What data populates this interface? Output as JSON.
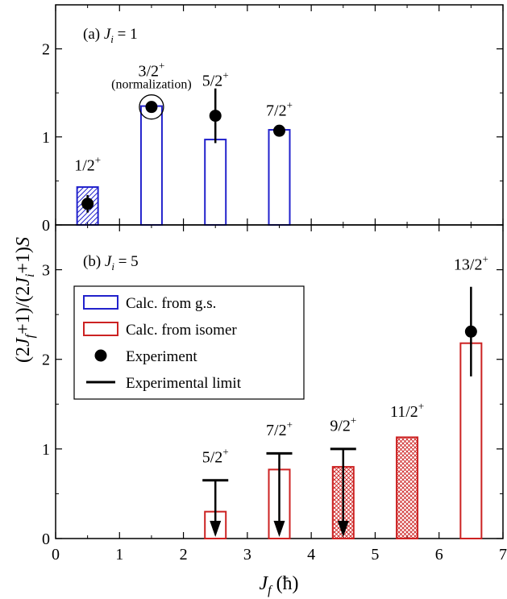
{
  "colors": {
    "calc_gs": "#2222cc",
    "calc_isomer": "#cc2222",
    "experiment": "#000000"
  },
  "chart_data": [
    {
      "panel": "a",
      "type": "bar",
      "panel_label": {
        "prefix": "(a) ",
        "sym": "J",
        "sub": "i",
        "rest": " = 1"
      },
      "xlim": [
        0,
        7
      ],
      "ylim": [
        0,
        2.5
      ],
      "yticks": [
        0,
        1,
        2
      ],
      "bars": [
        {
          "x": 0.5,
          "value": 0.43,
          "series": "gs",
          "hatch": "diag"
        },
        {
          "x": 1.5,
          "value": 1.35,
          "series": "gs",
          "hatch": "none"
        },
        {
          "x": 2.5,
          "value": 0.97,
          "series": "gs",
          "hatch": "none"
        },
        {
          "x": 3.5,
          "value": 1.08,
          "series": "gs",
          "hatch": "none"
        }
      ],
      "points": [
        {
          "x": 0.5,
          "y": 0.24,
          "err": 0.1
        },
        {
          "x": 1.5,
          "y": 1.34,
          "err": 0,
          "circled": true
        },
        {
          "x": 2.5,
          "y": 1.24,
          "err": 0.31
        },
        {
          "x": 3.5,
          "y": 1.07,
          "err": 0.04
        }
      ],
      "level_labels": [
        {
          "x": 0.5,
          "num": "1/2",
          "sup": "+",
          "y": 0.62
        },
        {
          "x": 1.5,
          "num": "3/2",
          "sup": "+",
          "y": 1.69
        },
        {
          "x": 2.5,
          "num": "5/2",
          "sup": "+",
          "y": 1.58
        },
        {
          "x": 3.5,
          "num": "7/2",
          "sup": "+",
          "y": 1.24
        }
      ],
      "annotations": [
        {
          "text": "(normalization)",
          "x": 1.5,
          "y": 1.55
        }
      ]
    },
    {
      "panel": "b",
      "type": "bar",
      "panel_label": {
        "prefix": "(b) ",
        "sym": "J",
        "sub": "i",
        "rest": " = 5"
      },
      "xlim": [
        0,
        7
      ],
      "ylim": [
        0,
        3.5
      ],
      "yticks": [
        0,
        1,
        2,
        3
      ],
      "bars": [
        {
          "x": 2.5,
          "value": 0.3,
          "series": "isomer",
          "hatch": "none"
        },
        {
          "x": 3.5,
          "value": 0.77,
          "series": "isomer",
          "hatch": "none"
        },
        {
          "x": 4.5,
          "value": 0.8,
          "series": "isomer",
          "hatch": "cross"
        },
        {
          "x": 5.5,
          "value": 1.13,
          "series": "isomer",
          "hatch": "cross"
        },
        {
          "x": 6.5,
          "value": 2.18,
          "series": "isomer",
          "hatch": "none"
        }
      ],
      "points": [
        {
          "x": 6.5,
          "y": 2.31,
          "err": 0.5
        }
      ],
      "limits": [
        {
          "x": 2.5,
          "y": 0.65
        },
        {
          "x": 3.5,
          "y": 0.95
        },
        {
          "x": 4.5,
          "y": 1.0
        }
      ],
      "level_labels": [
        {
          "x": 2.5,
          "num": "5/2",
          "sup": "+",
          "y": 0.85
        },
        {
          "x": 3.5,
          "num": "7/2",
          "sup": "+",
          "y": 1.15
        },
        {
          "x": 4.5,
          "num": "9/2",
          "sup": "+",
          "y": 1.2
        },
        {
          "x": 5.5,
          "num": "11/2",
          "sup": "+",
          "y": 1.36
        },
        {
          "x": 6.5,
          "num": "13/2",
          "sup": "+",
          "y": 3.0
        }
      ],
      "legend": {
        "placement": "upper-left",
        "entries": [
          {
            "kind": "box",
            "series": "gs",
            "label": "Calc. from g.s."
          },
          {
            "kind": "box",
            "series": "isomer",
            "label": "Calc. from isomer"
          },
          {
            "kind": "dot",
            "label": "Experiment"
          },
          {
            "kind": "line",
            "label": "Experimental limit"
          }
        ]
      }
    }
  ],
  "shared_x": {
    "ticks": [
      0,
      1,
      2,
      3,
      4,
      5,
      6,
      7
    ],
    "label": {
      "sym": "J",
      "sub": "f",
      "rest": " (ħ)"
    }
  },
  "shared_y": {
    "label": {
      "p1": "(2",
      "j1": "J",
      "s1": "f",
      "p2": "+1)/(2",
      "j2": "J",
      "s2": "i",
      "p3": "+1)",
      "j3": "S"
    }
  }
}
